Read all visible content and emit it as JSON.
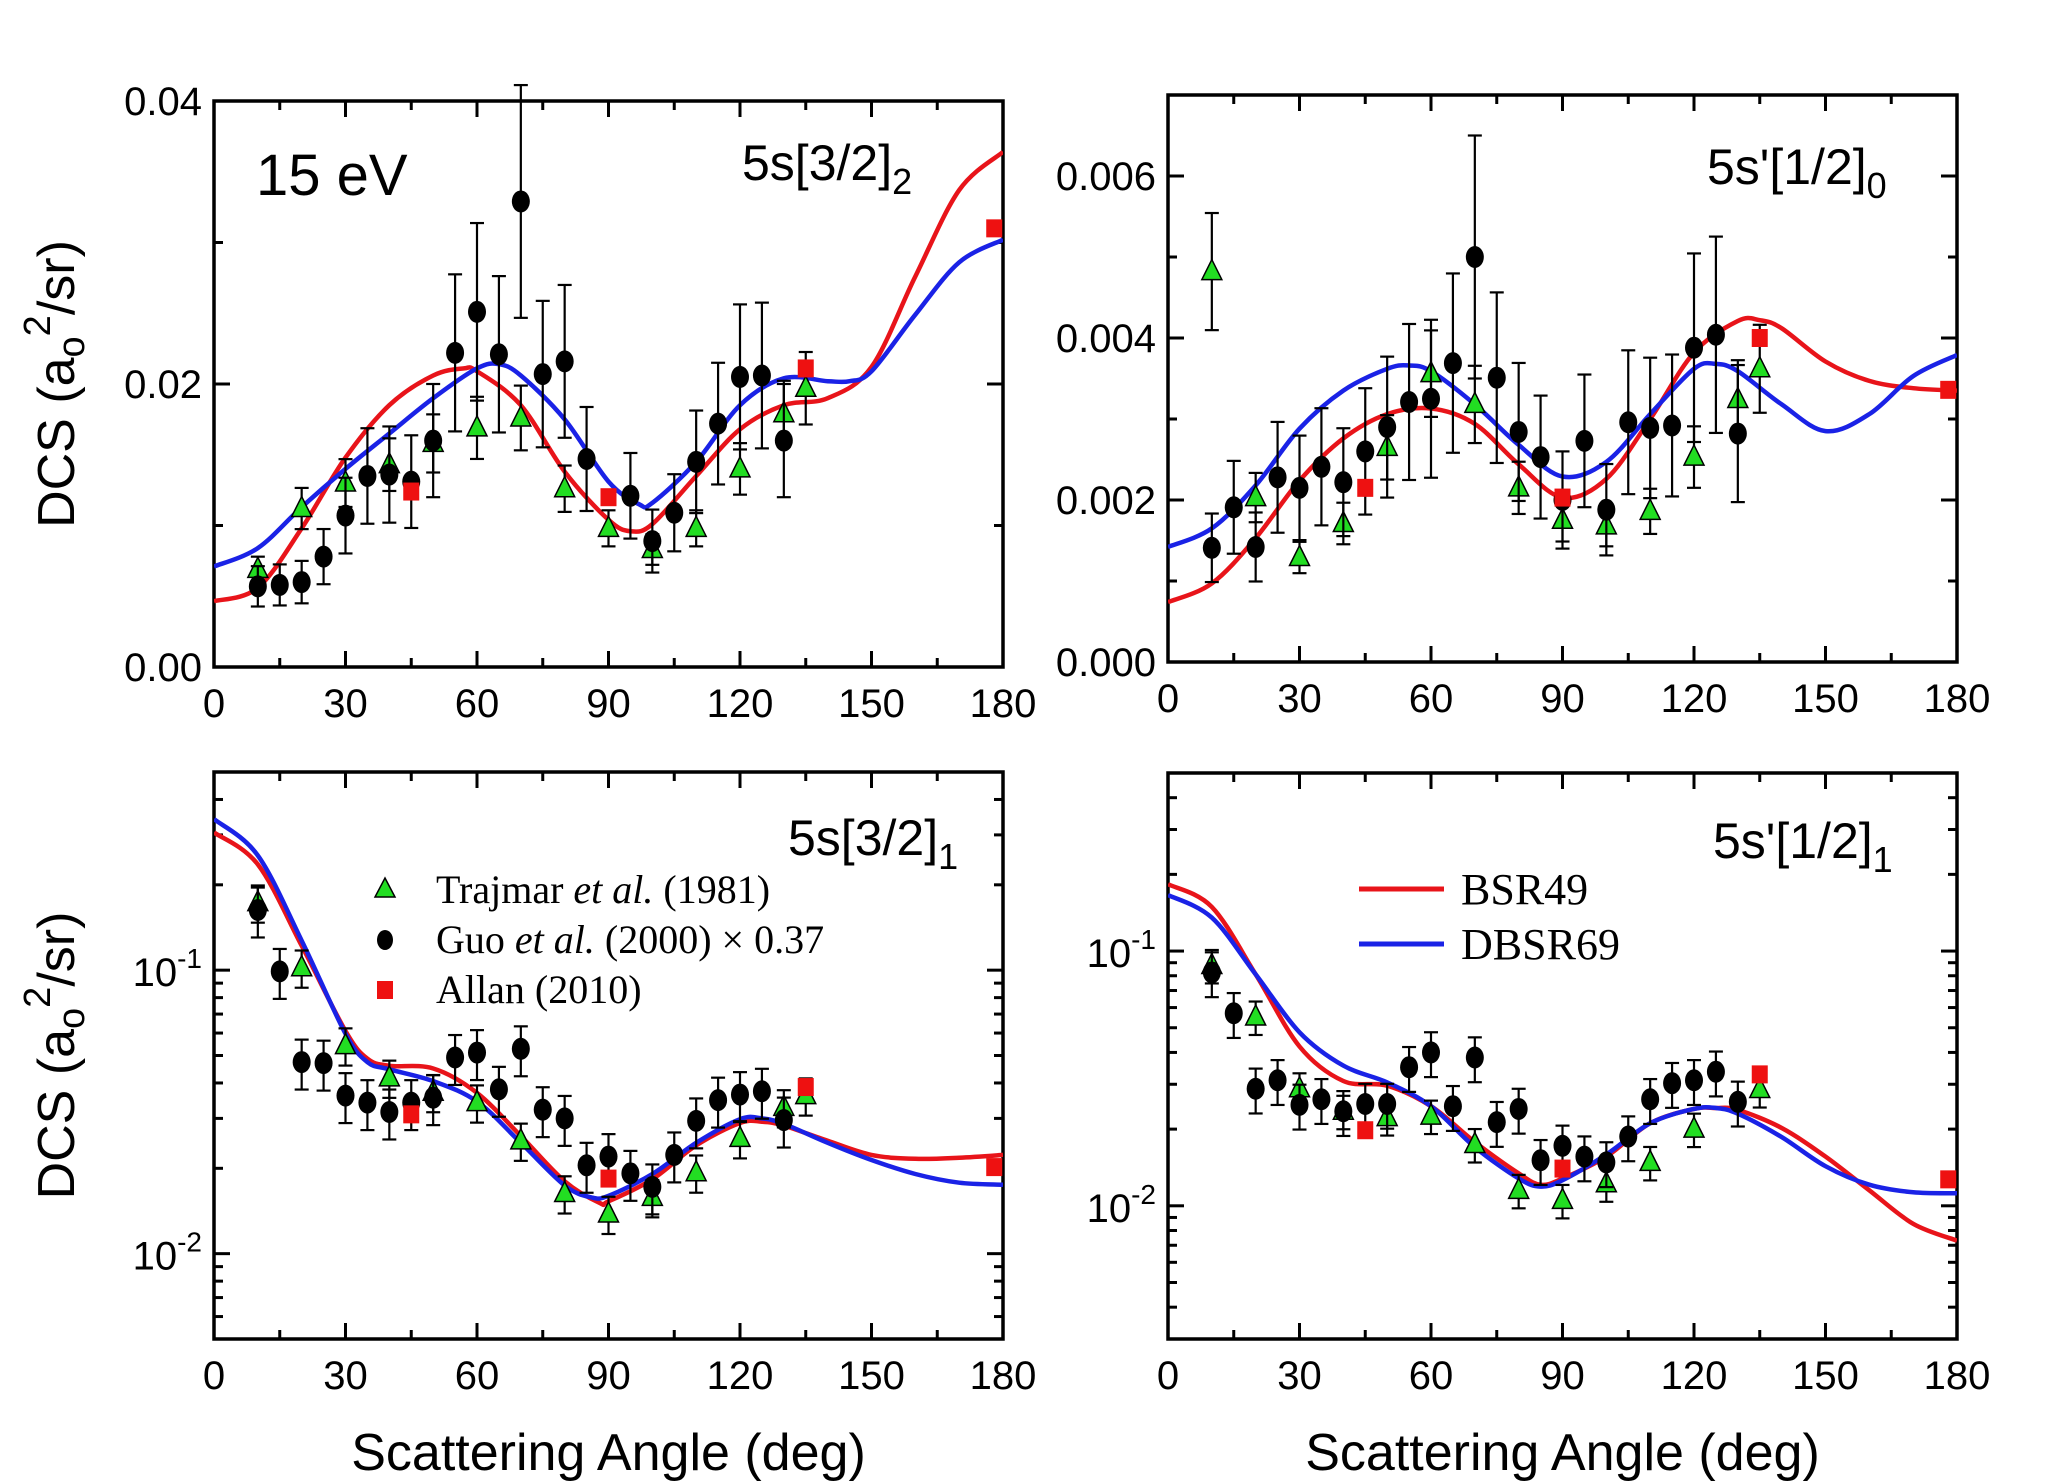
{
  "colors": {
    "BSR49": "#e8141a",
    "DBSR69": "#1a22e6",
    "Trajmar": "#22dd22",
    "Guo": "#000000",
    "Allan": "#ee1111"
  },
  "energy_label": "15 eV",
  "legend_data": [
    {
      "marker": "triangle",
      "pre": "Trajmar ",
      "ital": "et al.",
      "post": " (1981)"
    },
    {
      "marker": "circle",
      "pre": "Guo ",
      "ital": "et al.",
      "post": " (2000)  ×  0.37"
    },
    {
      "marker": "square",
      "pre": "Allan (2010)",
      "ital": "",
      "post": ""
    }
  ],
  "legend_theory": [
    "BSR49",
    "DBSR69"
  ],
  "chart_data": [
    {
      "type": "scatter+line",
      "title": {
        "main": "5s[3/2]",
        "sub": "2"
      },
      "ylabel": {
        "pre": "DCS (a",
        "sub": "o",
        "sup": "2",
        "post": "/sr)"
      },
      "xlabel": "",
      "xlim": [
        0,
        180
      ],
      "ylim": [
        0,
        0.04
      ],
      "yscale": "linear",
      "xticks": [
        "0",
        "30",
        "60",
        "90",
        "120",
        "150",
        "180"
      ],
      "yticks": [
        {
          "v": 0,
          "label": "0.00"
        },
        {
          "v": 0.02,
          "label": "0.02"
        },
        {
          "v": 0.04,
          "label": "0.04"
        }
      ],
      "series": [
        {
          "name": "Trajmar et al. (1981)",
          "kind": "triangle",
          "err_rel": 0.13,
          "x": [
            10,
            20,
            30,
            40,
            50,
            60,
            70,
            80,
            90,
            100,
            110,
            120,
            130,
            135
          ],
          "y": [
            0.0069,
            0.0112,
            0.013,
            0.0143,
            0.0158,
            0.0169,
            0.0176,
            0.0126,
            0.0098,
            0.0083,
            0.0098,
            0.014,
            0.0179,
            0.0197
          ]
        },
        {
          "name": "Guo et al. (2000) × 0.37",
          "kind": "circle",
          "err_rel": 0.25,
          "x": [
            10,
            15,
            20,
            25,
            30,
            35,
            40,
            45,
            50,
            55,
            60,
            65,
            70,
            75,
            80,
            85,
            95,
            100,
            105,
            110,
            115,
            120,
            125,
            130
          ],
          "y": [
            0.0057,
            0.0058,
            0.006,
            0.0078,
            0.0107,
            0.0135,
            0.0136,
            0.0131,
            0.016,
            0.0222,
            0.0251,
            0.0221,
            0.0329,
            0.0207,
            0.0216,
            0.0147,
            0.0121,
            0.0089,
            0.0109,
            0.0145,
            0.0172,
            0.0205,
            0.0206,
            0.016
          ]
        },
        {
          "name": "Allan (2010)",
          "kind": "square",
          "err_rel": 0.07,
          "x": [
            45,
            90,
            135,
            178
          ],
          "y": [
            0.0124,
            0.012,
            0.0211,
            0.031
          ]
        },
        {
          "name": "BSR49",
          "kind": "line",
          "x": [
            0,
            10,
            20,
            30,
            40,
            50,
            57,
            60,
            70,
            80,
            90,
            95,
            100,
            110,
            120,
            130,
            140,
            150,
            160,
            170,
            180
          ],
          "y": [
            0.00465,
            0.0056,
            0.0098,
            0.0148,
            0.0185,
            0.0206,
            0.0211,
            0.0209,
            0.0185,
            0.0138,
            0.0104,
            0.0096,
            0.0101,
            0.0135,
            0.0168,
            0.0185,
            0.019,
            0.0212,
            0.0276,
            0.0337,
            0.0364
          ]
        },
        {
          "name": "DBSR69",
          "kind": "line",
          "x": [
            0,
            10,
            20,
            30,
            40,
            50,
            60,
            65,
            70,
            80,
            90,
            97,
            100,
            110,
            120,
            130,
            140,
            145,
            150,
            160,
            170,
            180
          ],
          "y": [
            0.0071,
            0.0084,
            0.0113,
            0.014,
            0.0165,
            0.019,
            0.0211,
            0.0214,
            0.0206,
            0.0175,
            0.0131,
            0.0115,
            0.0116,
            0.0145,
            0.0185,
            0.0204,
            0.0202,
            0.0202,
            0.0209,
            0.0249,
            0.0286,
            0.0302
          ]
        }
      ]
    },
    {
      "type": "scatter+line",
      "title": {
        "main": "5s'[1/2]",
        "sub": "0"
      },
      "xlabel": "",
      "xlim": [
        0,
        180
      ],
      "ylim": [
        0,
        0.007
      ],
      "yscale": "linear",
      "xticks": [
        "0",
        "30",
        "60",
        "90",
        "120",
        "150",
        "180"
      ],
      "yticks": [
        {
          "v": 0,
          "label": "0.000"
        },
        {
          "v": 0.002,
          "label": "0.002"
        },
        {
          "v": 0.004,
          "label": "0.004"
        },
        {
          "v": 0.006,
          "label": "0.006"
        }
      ],
      "series": [
        {
          "name": "Trajmar et al. (1981)",
          "kind": "triangle",
          "err_rel": 0.15,
          "x": [
            10,
            20,
            30,
            40,
            50,
            60,
            70,
            80,
            90,
            100,
            110,
            120,
            130,
            135
          ],
          "y": [
            0.00482,
            0.00203,
            0.00129,
            0.00171,
            0.00265,
            0.00356,
            0.00318,
            0.00215,
            0.00175,
            0.00168,
            0.00186,
            0.00253,
            0.00324,
            0.00362
          ]
        },
        {
          "name": "Guo et al. (2000) × 0.37",
          "kind": "circle",
          "err_rel": 0.3,
          "x": [
            10,
            15,
            20,
            25,
            30,
            35,
            40,
            45,
            50,
            55,
            60,
            65,
            70,
            75,
            80,
            85,
            90,
            95,
            100,
            105,
            110,
            115,
            120,
            125,
            130
          ],
          "y": [
            0.00141,
            0.00191,
            0.00142,
            0.00228,
            0.00215,
            0.00241,
            0.00222,
            0.0026,
            0.0029,
            0.00321,
            0.00325,
            0.00369,
            0.005,
            0.00351,
            0.00284,
            0.00253,
            0.002,
            0.00273,
            0.00188,
            0.00296,
            0.00289,
            0.00292,
            0.00388,
            0.00404,
            0.00282
          ]
        },
        {
          "name": "Allan (2010)",
          "kind": "square",
          "err_rel": 0.03,
          "x": [
            45,
            90,
            135,
            178
          ],
          "y": [
            0.00215,
            0.00203,
            0.004,
            0.00336
          ]
        },
        {
          "name": "BSR49",
          "kind": "line",
          "x": [
            0,
            10,
            20,
            30,
            40,
            50,
            60,
            70,
            80,
            90,
            100,
            110,
            120,
            130,
            135,
            140,
            150,
            160,
            170,
            180
          ],
          "y": [
            0.00074,
            0.00097,
            0.00153,
            0.00224,
            0.00276,
            0.00306,
            0.00313,
            0.00294,
            0.00244,
            0.00203,
            0.00226,
            0.003,
            0.00382,
            0.00421,
            0.00422,
            0.00412,
            0.00371,
            0.00347,
            0.00338,
            0.00335
          ]
        },
        {
          "name": "DBSR69",
          "kind": "line",
          "x": [
            0,
            10,
            20,
            30,
            40,
            50,
            55,
            60,
            70,
            80,
            90,
            100,
            110,
            120,
            125,
            130,
            140,
            150,
            160,
            170,
            180
          ],
          "y": [
            0.00142,
            0.00165,
            0.00218,
            0.00288,
            0.00335,
            0.00362,
            0.00366,
            0.00359,
            0.00318,
            0.00268,
            0.00229,
            0.00247,
            0.00306,
            0.00362,
            0.00368,
            0.00359,
            0.00318,
            0.00285,
            0.00306,
            0.00353,
            0.00379
          ]
        }
      ]
    },
    {
      "type": "scatter+line",
      "title": {
        "main": "5s[3/2]",
        "sub": "1"
      },
      "ylabel": {
        "pre": "DCS (a",
        "sub": "o",
        "sup": "2",
        "post": "/sr)"
      },
      "xlabel": "Scattering Angle (deg)",
      "xlim": [
        0,
        180
      ],
      "ylim": [
        0.005,
        0.5
      ],
      "yscale": "log",
      "xticks": [
        "0",
        "30",
        "60",
        "90",
        "120",
        "150",
        "180"
      ],
      "yticks": [
        {
          "v": 0.1,
          "base": "10",
          "exp": "-1"
        },
        {
          "v": 0.01,
          "base": "10",
          "exp": "-2"
        }
      ],
      "series": [
        {
          "name": "Trajmar et al. (1981)",
          "kind": "triangle",
          "err_rel": 0.15,
          "x": [
            10,
            20,
            30,
            40,
            50,
            60,
            70,
            80,
            90,
            100,
            110,
            120,
            130,
            135
          ],
          "y": [
            0.173,
            0.102,
            0.0542,
            0.0417,
            0.0371,
            0.0341,
            0.025,
            0.0163,
            0.0138,
            0.0158,
            0.0193,
            0.0255,
            0.0328,
            0.0361
          ]
        },
        {
          "name": "Guo et al. (2000) × 0.37",
          "kind": "circle",
          "err_rel": 0.2,
          "x": [
            10,
            15,
            20,
            25,
            30,
            35,
            40,
            45,
            50,
            55,
            60,
            65,
            70,
            75,
            80,
            85,
            90,
            95,
            100,
            105,
            110,
            115,
            120,
            125,
            130
          ],
          "y": [
            0.163,
            0.099,
            0.0474,
            0.047,
            0.0361,
            0.0341,
            0.0316,
            0.0341,
            0.0355,
            0.0492,
            0.0512,
            0.038,
            0.0528,
            0.0322,
            0.03,
            0.0205,
            0.022,
            0.0192,
            0.0172,
            0.0223,
            0.0294,
            0.0348,
            0.0364,
            0.0374,
            0.0296
          ]
        },
        {
          "name": "Allan (2010)",
          "kind": "square",
          "err_rel": 0.07,
          "x": [
            45,
            90,
            135,
            178
          ],
          "y": [
            0.031,
            0.0184,
            0.0387,
            0.0202
          ]
        },
        {
          "name": "BSR49",
          "kind": "line",
          "x": [
            0,
            10,
            20,
            30,
            35,
            40,
            50,
            60,
            70,
            80,
            88,
            90,
            100,
            110,
            120,
            125,
            130,
            140,
            150,
            160,
            170,
            180
          ],
          "y": [
            0.306,
            0.236,
            0.122,
            0.061,
            0.0487,
            0.046,
            0.045,
            0.0369,
            0.026,
            0.018,
            0.0151,
            0.0153,
            0.0183,
            0.0241,
            0.0289,
            0.0292,
            0.0283,
            0.025,
            0.0223,
            0.0216,
            0.0218,
            0.0223
          ]
        },
        {
          "name": "DBSR69",
          "kind": "line",
          "x": [
            0,
            10,
            20,
            30,
            35,
            40,
            50,
            60,
            70,
            80,
            86,
            90,
            100,
            110,
            120,
            125,
            130,
            140,
            150,
            160,
            170,
            180
          ],
          "y": [
            0.341,
            0.254,
            0.127,
            0.0597,
            0.0474,
            0.0447,
            0.0406,
            0.0344,
            0.0246,
            0.0174,
            0.0158,
            0.016,
            0.0191,
            0.0246,
            0.0298,
            0.03,
            0.0287,
            0.0246,
            0.0214,
            0.0191,
            0.0178,
            0.0175
          ]
        }
      ]
    },
    {
      "type": "scatter+line",
      "title": {
        "main": "5s'[1/2]",
        "sub": "1"
      },
      "xlabel": "Scattering Angle (deg)",
      "xlim": [
        0,
        180
      ],
      "ylim": [
        0.003,
        0.5
      ],
      "yscale": "log",
      "xticks": [
        "0",
        "30",
        "60",
        "90",
        "120",
        "150",
        "180"
      ],
      "yticks": [
        {
          "v": 0.1,
          "base": "10",
          "exp": "-1"
        },
        {
          "v": 0.01,
          "base": "10",
          "exp": "-2"
        }
      ],
      "series": [
        {
          "name": "Trajmar et al. (1981)",
          "kind": "triangle",
          "err_rel": 0.15,
          "x": [
            10,
            20,
            30,
            40,
            50,
            60,
            70,
            80,
            90,
            100,
            110,
            120,
            135
          ],
          "y": [
            0.0878,
            0.0551,
            0.0288,
            0.0235,
            0.0222,
            0.0225,
            0.0174,
            0.0115,
            0.0105,
            0.0122,
            0.0148,
            0.02,
            0.0286
          ]
        },
        {
          "name": "Guo et al. (2000) × 0.37",
          "kind": "circle",
          "err_rel": 0.2,
          "x": [
            10,
            15,
            20,
            25,
            30,
            35,
            40,
            45,
            50,
            55,
            60,
            65,
            70,
            75,
            80,
            85,
            90,
            95,
            100,
            105,
            110,
            115,
            120,
            125,
            130
          ],
          "y": [
            0.0824,
            0.057,
            0.0288,
            0.0311,
            0.0249,
            0.0262,
            0.0235,
            0.0251,
            0.0251,
            0.035,
            0.04,
            0.0246,
            0.0382,
            0.0213,
            0.024,
            0.0151,
            0.0172,
            0.0156,
            0.0148,
            0.0187,
            0.0262,
            0.0303,
            0.0311,
            0.0336,
            0.0256
          ]
        },
        {
          "name": "Allan (2010)",
          "kind": "square",
          "err_rel": 0.05,
          "x": [
            45,
            90,
            135,
            178
          ],
          "y": [
            0.0198,
            0.014,
            0.0328,
            0.0127
          ]
        },
        {
          "name": "BSR49",
          "kind": "line",
          "x": [
            0,
            10,
            20,
            30,
            40,
            50,
            60,
            70,
            80,
            85,
            90,
            100,
            110,
            120,
            125,
            130,
            140,
            150,
            160,
            170,
            180
          ],
          "y": [
            0.183,
            0.149,
            0.081,
            0.0422,
            0.0309,
            0.0296,
            0.0246,
            0.0178,
            0.0134,
            0.0121,
            0.0128,
            0.0156,
            0.0211,
            0.024,
            0.0242,
            0.0238,
            0.0202,
            0.0156,
            0.0115,
            0.0085,
            0.0073
          ]
        },
        {
          "name": "DBSR69",
          "kind": "line",
          "x": [
            0,
            10,
            20,
            30,
            40,
            50,
            60,
            70,
            80,
            85,
            90,
            100,
            110,
            120,
            125,
            130,
            140,
            150,
            160,
            170,
            180
          ],
          "y": [
            0.166,
            0.1353,
            0.081,
            0.048,
            0.0355,
            0.0305,
            0.0246,
            0.017,
            0.0128,
            0.0119,
            0.0126,
            0.0159,
            0.0211,
            0.024,
            0.0242,
            0.023,
            0.0186,
            0.0143,
            0.0121,
            0.0113,
            0.0112
          ]
        }
      ]
    }
  ]
}
